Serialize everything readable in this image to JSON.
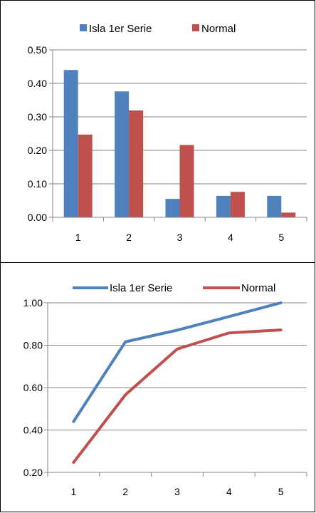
{
  "chart_data": [
    {
      "type": "bar",
      "categories": [
        "1",
        "2",
        "3",
        "4",
        "5"
      ],
      "series": [
        {
          "name": "Isla 1er Serie",
          "color": "#4F81BD",
          "values": [
            0.44,
            0.376,
            0.055,
            0.064,
            0.064
          ]
        },
        {
          "name": "Normal",
          "color": "#C0504D",
          "values": [
            0.247,
            0.319,
            0.216,
            0.076,
            0.014
          ]
        }
      ],
      "ylim": [
        0,
        0.5
      ],
      "yticks": [
        "0.00",
        "0.10",
        "0.20",
        "0.30",
        "0.40",
        "0.50"
      ],
      "grid": true,
      "legend": "top"
    },
    {
      "type": "line",
      "categories": [
        "1",
        "2",
        "3",
        "4",
        "5"
      ],
      "series": [
        {
          "name": "Isla 1er Serie",
          "color": "#4F81BD",
          "values": [
            0.44,
            0.816,
            0.871,
            0.935,
            1.0
          ]
        },
        {
          "name": "Normal",
          "color": "#C0504D",
          "values": [
            0.247,
            0.566,
            0.782,
            0.858,
            0.872
          ]
        }
      ],
      "ylim": [
        0.2,
        1.0
      ],
      "yticks": [
        "0.20",
        "0.40",
        "0.60",
        "0.80",
        "1.00"
      ],
      "grid": true,
      "legend": "top"
    }
  ]
}
